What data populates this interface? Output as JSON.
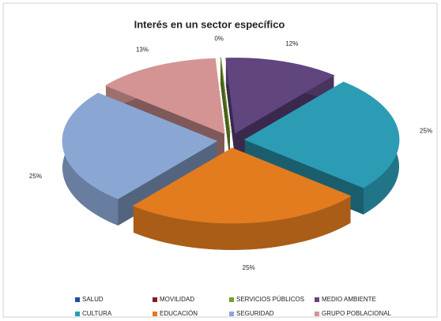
{
  "chart_data": {
    "type": "pie3d",
    "title": "Interés en un sector específico",
    "categories": [
      "SALUD",
      "MOVILIDAD",
      "SERVICIOS PÚBLICOS",
      "MEDIO AMBIENTE",
      "CULTURA",
      "EDUCACIÓN",
      "SEGURIDAD",
      "GRUPO POBLACIONAL"
    ],
    "values": [
      0,
      0,
      0,
      12,
      25,
      25,
      25,
      13
    ],
    "value_labels": [
      null,
      null,
      "0%",
      "12%",
      "25%",
      "25%",
      "25%",
      "13%"
    ],
    "colors": [
      "#1f4e9a",
      "#8b1a1a",
      "#77a02c",
      "#60457f",
      "#2c9cb5",
      "#e37c1f",
      "#8aa7d4",
      "#d49494"
    ],
    "legend": "bottom"
  }
}
